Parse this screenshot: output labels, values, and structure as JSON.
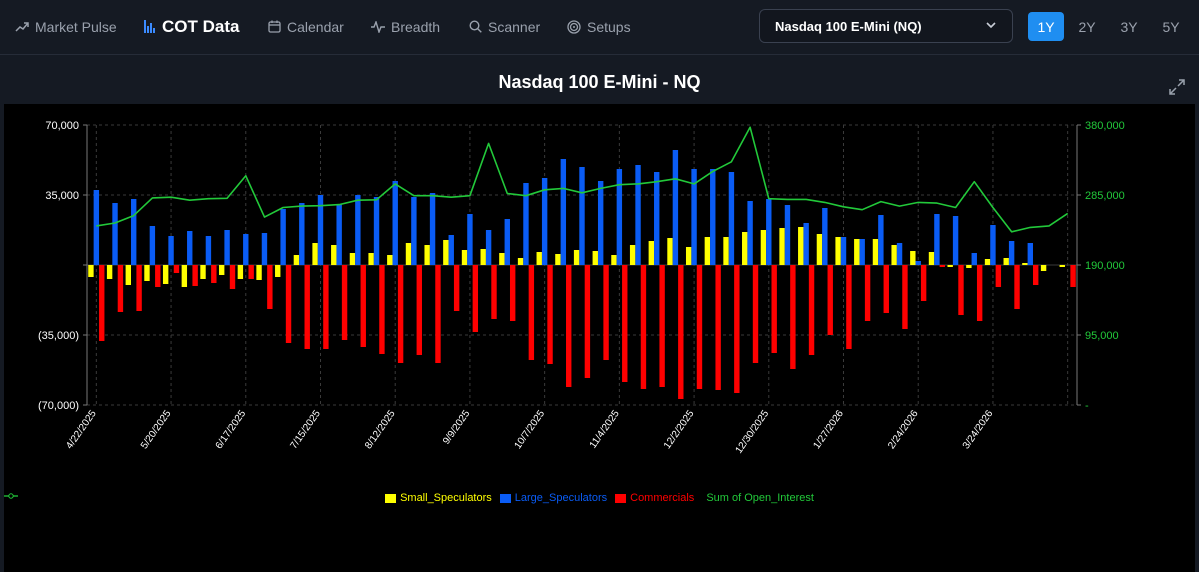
{
  "nav": {
    "items": [
      {
        "label": "Market Pulse",
        "icon": "trending-up-icon"
      },
      {
        "label": "COT Data",
        "icon": "bar-chart-icon",
        "active": true
      },
      {
        "label": "Calendar",
        "icon": "calendar-icon"
      },
      {
        "label": "Breadth",
        "icon": "activity-icon"
      },
      {
        "label": "Scanner",
        "icon": "search-icon"
      },
      {
        "label": "Setups",
        "icon": "target-icon"
      }
    ]
  },
  "instrument_select": {
    "value": "Nasdaq 100 E-Mini (NQ)"
  },
  "ranges": [
    {
      "label": "1Y",
      "active": true
    },
    {
      "label": "2Y"
    },
    {
      "label": "3Y"
    },
    {
      "label": "5Y"
    }
  ],
  "colors": {
    "small": "#ffff00",
    "large": "#0a5cf5",
    "commercials": "#ff0000",
    "oi": "#22c93a",
    "accent": "#1f8ef1"
  },
  "chart_data": {
    "type": "bar",
    "title": "Nasdaq 100 E-Mini - NQ",
    "xlabel": "",
    "ylabel": "",
    "ylim": [
      -70000,
      70000
    ],
    "y_ticks": [
      70000,
      35000,
      0,
      -35000,
      -70000
    ],
    "y_tick_labels": [
      "70,000",
      "35,000",
      "",
      "(35,000)",
      "(70,000)"
    ],
    "y2lim": [
      0,
      380000
    ],
    "y2_ticks": [
      380000,
      285000,
      190000,
      95000,
      0
    ],
    "y2_tick_labels": [
      "380,000",
      "285,000",
      "190,000",
      "95,000",
      "-"
    ],
    "x_tick_labels": [
      "4/22/2025",
      "5/20/2025",
      "6/17/2025",
      "7/15/2025",
      "8/12/2025",
      "9/9/2025",
      "10/7/2025",
      "11/4/2025",
      "12/2/2025",
      "12/30/2025",
      "1/27/2026",
      "2/24/2026",
      "3/24/2026"
    ],
    "x_tick_every": 4,
    "grid": true,
    "legend_position": "bottom",
    "categories": [
      "4/22/2025",
      "4/29/2025",
      "5/6/2025",
      "5/13/2025",
      "5/20/2025",
      "5/27/2025",
      "6/3/2025",
      "6/10/2025",
      "6/17/2025",
      "6/24/2025",
      "7/1/2025",
      "7/8/2025",
      "7/15/2025",
      "7/22/2025",
      "7/29/2025",
      "8/5/2025",
      "8/12/2025",
      "8/19/2025",
      "8/26/2025",
      "9/2/2025",
      "9/9/2025",
      "9/16/2025",
      "9/23/2025",
      "9/30/2025",
      "10/7/2025",
      "10/14/2025",
      "10/21/2025",
      "10/28/2025",
      "11/4/2025",
      "11/11/2025",
      "11/18/2025",
      "11/25/2025",
      "12/2/2025",
      "12/9/2025",
      "12/16/2025",
      "12/23/2025",
      "12/30/2025",
      "1/6/2026",
      "1/13/2026",
      "1/20/2026",
      "1/27/2026",
      "2/3/2026",
      "2/10/2026",
      "2/17/2026",
      "2/24/2026",
      "3/3/2026",
      "3/10/2026",
      "3/17/2026",
      "3/24/2026",
      "3/31/2026",
      "4/7/2026",
      "4/14/2026",
      "4/21/2026"
    ],
    "series": [
      {
        "name": "Small_Speculators",
        "kind": "bar",
        "values": [
          -6000,
          -7000,
          -10000,
          -8000,
          -9500,
          -11000,
          -7000,
          -5000,
          -7000,
          -7500,
          -6000,
          5000,
          11000,
          10000,
          6000,
          6000,
          5000,
          11000,
          10000,
          12500,
          7500,
          8000,
          6000,
          3500,
          6500,
          5500,
          7500,
          7000,
          5000,
          10000,
          12000,
          13500,
          9000,
          14000,
          14000,
          16500,
          17500,
          18500,
          19000,
          15500,
          14000,
          13000,
          13000,
          10000,
          7000,
          6500,
          -1000,
          -1500,
          3000,
          3500,
          1000,
          -3000,
          -1000
        ]
      },
      {
        "name": "Large_Speculators",
        "kind": "bar",
        "values": [
          37500,
          31000,
          33000,
          19500,
          14500,
          17000,
          14500,
          17500,
          15500,
          16000,
          28000,
          31000,
          35000,
          30500,
          35000,
          34000,
          42000,
          34000,
          36000,
          15000,
          25500,
          17500,
          23000,
          41000,
          43500,
          53000,
          49000,
          42000,
          48000,
          50000,
          46500,
          57500,
          48000,
          48000,
          46500,
          32000,
          33000,
          30000,
          21000,
          28500,
          14000,
          13000,
          25000,
          11000,
          2000,
          25500,
          24500,
          6000,
          20000,
          12000,
          11000,
          0,
          0
        ]
      },
      {
        "name": "Commercials",
        "kind": "bar",
        "values": [
          -38000,
          -23500,
          -23000,
          -11000,
          -4000,
          -10500,
          -9000,
          -12000,
          -7000,
          -22000,
          -39000,
          -42000,
          -42000,
          -37500,
          -41000,
          -44500,
          -49000,
          -45000,
          -49000,
          -23000,
          -33500,
          -27000,
          -28000,
          -47500,
          -49500,
          -61000,
          -56500,
          -47500,
          -58500,
          -62000,
          -61000,
          -67000,
          -62000,
          -62500,
          -64000,
          -49000,
          -44000,
          -52000,
          -45000,
          -35000,
          -42000,
          -28000,
          -24000,
          -32000,
          -18000,
          -1000,
          -25000,
          -28000,
          -11000,
          -22000,
          -10000,
          0,
          -11000
        ]
      },
      {
        "name": "Sum of Open_Interest",
        "kind": "line",
        "values": [
          243000,
          247000,
          257000,
          281000,
          282000,
          278000,
          280000,
          280500,
          311000,
          255000,
          268000,
          270000,
          270500,
          272000,
          278000,
          278500,
          300000,
          284000,
          284000,
          282000,
          284000,
          355000,
          287000,
          284000,
          292000,
          294000,
          288000,
          294000,
          299000,
          300000,
          303000,
          307000,
          300000,
          317000,
          330000,
          377000,
          280000,
          279000,
          279000,
          275000,
          269000,
          265000,
          276000,
          270000,
          275000,
          274000,
          268000,
          303000,
          268000,
          235000,
          241000,
          243000,
          260000
        ]
      }
    ]
  },
  "legend": [
    {
      "label": "Small_Speculators",
      "color": "#ffff00",
      "kind": "box"
    },
    {
      "label": "Large_Speculators",
      "color": "#0a5cf5",
      "kind": "box"
    },
    {
      "label": "Commercials",
      "color": "#ff0000",
      "kind": "box"
    },
    {
      "label": "Sum of Open_Interest",
      "color": "#22c93a",
      "kind": "line"
    }
  ]
}
